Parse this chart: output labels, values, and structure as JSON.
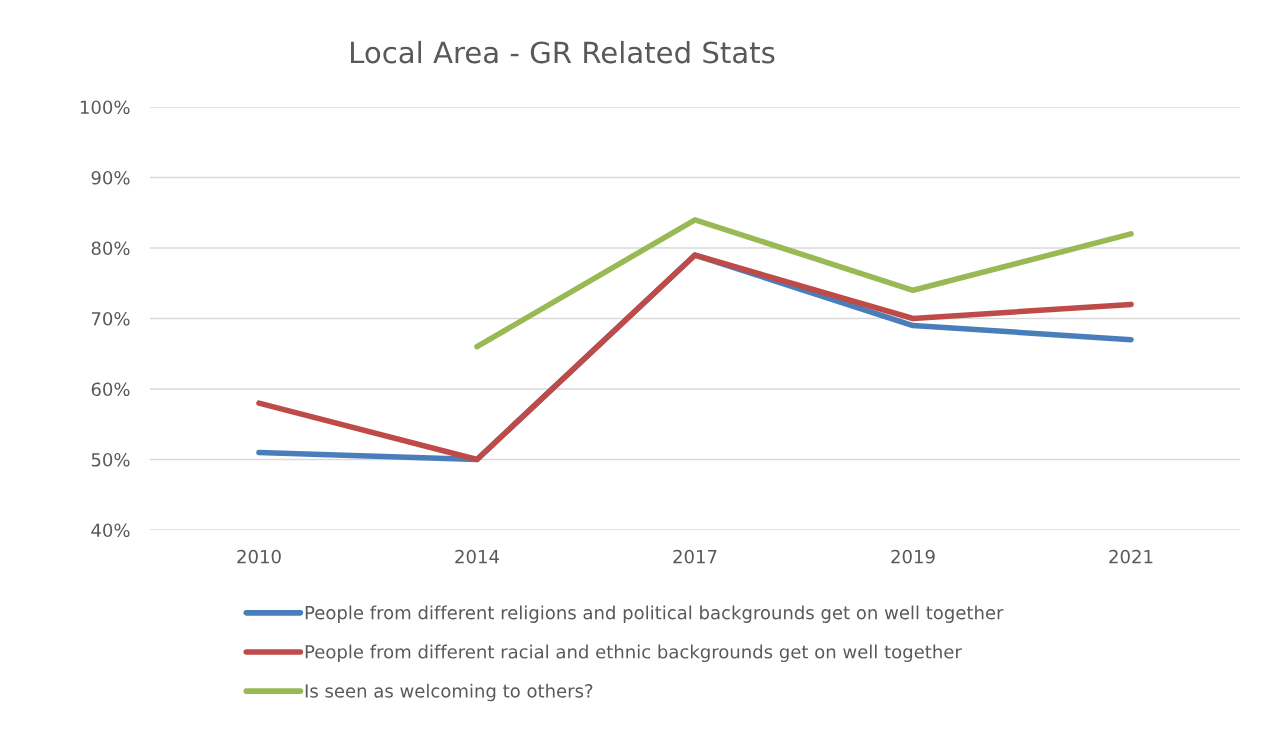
{
  "chart_data": {
    "type": "line",
    "title": "Local Area - GR Related Stats",
    "categories": [
      "2010",
      "2014",
      "2017",
      "2019",
      "2021"
    ],
    "series": [
      {
        "name": "People from different religions and political backgrounds get on well together",
        "color": "#4a7ebb",
        "values": [
          51,
          50,
          79,
          69,
          67
        ]
      },
      {
        "name": "People from different racial and ethnic backgrounds get on well together",
        "color": "#be4b48",
        "values": [
          58,
          50,
          79,
          70,
          72
        ]
      },
      {
        "name": "Is seen as welcoming to others?",
        "color": "#98b954",
        "values": [
          null,
          66,
          84,
          74,
          82
        ]
      }
    ],
    "ylim": [
      40,
      100
    ],
    "yticks": [
      {
        "value": 40,
        "label": "40%"
      },
      {
        "value": 50,
        "label": "50%"
      },
      {
        "value": 60,
        "label": "60%"
      },
      {
        "value": 70,
        "label": "70%"
      },
      {
        "value": 80,
        "label": "80%"
      },
      {
        "value": 90,
        "label": "90%"
      },
      {
        "value": 100,
        "label": "100%"
      }
    ],
    "grid": "y",
    "legend": "bottom",
    "marker": "none",
    "line_style": "solid"
  }
}
